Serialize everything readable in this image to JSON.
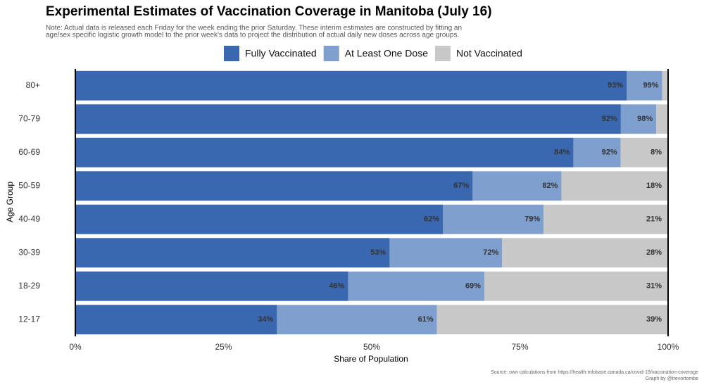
{
  "chart_data": {
    "type": "bar",
    "orientation": "horizontal",
    "title": "Experimental Estimates of Vaccination Coverage in Manitoba (July 16)",
    "note": [
      "Note: Actual data is released each Friday for the week ending the prior Saturday. These interim estimates are constructed by fitting an",
      "age/sex specific logistic growth model to the prior week's data to project the distribution of actual daily new doses across age groups."
    ],
    "source": [
      "Source: own calculations from https://health-infobase.canada.ca/covid-19/vaccination-coverage",
      "Graph by @trevortombe"
    ],
    "y_label": "Age Group",
    "x_label": "Share of Population",
    "categories": [
      "80+",
      "70-79",
      "60-69",
      "50-59",
      "40-49",
      "30-39",
      "18-29",
      "12-17"
    ],
    "series": [
      {
        "name": "Fully Vaccinated",
        "color": "#3a68b0",
        "values": [
          93,
          92,
          84,
          67,
          62,
          53,
          46,
          34
        ],
        "value_labels": [
          "93%",
          "92%",
          "84%",
          "67%",
          "62%",
          "53%",
          "46%",
          "34%"
        ]
      },
      {
        "name": "At Least One Dose",
        "color": "#7f9fcf",
        "values": [
          99,
          98,
          92,
          82,
          79,
          72,
          69,
          61
        ],
        "value_labels": [
          "99%",
          "98%",
          "92%",
          "82%",
          "79%",
          "72%",
          "69%",
          "61%"
        ]
      },
      {
        "name": "Not Vaccinated",
        "color": "#c8c8c8",
        "values": [
          1,
          2,
          8,
          18,
          21,
          28,
          31,
          39
        ],
        "value_labels": [
          null,
          null,
          "8%",
          "18%",
          "21%",
          "28%",
          "31%",
          "39%"
        ]
      }
    ],
    "xlim": [
      0,
      100
    ],
    "xticks": [
      {
        "value": 0,
        "label": "0%"
      },
      {
        "value": 25,
        "label": "25%"
      },
      {
        "value": 50,
        "label": "50%"
      },
      {
        "value": 75,
        "label": "75%"
      },
      {
        "value": 100,
        "label": "100%"
      }
    ],
    "legend": "top"
  }
}
